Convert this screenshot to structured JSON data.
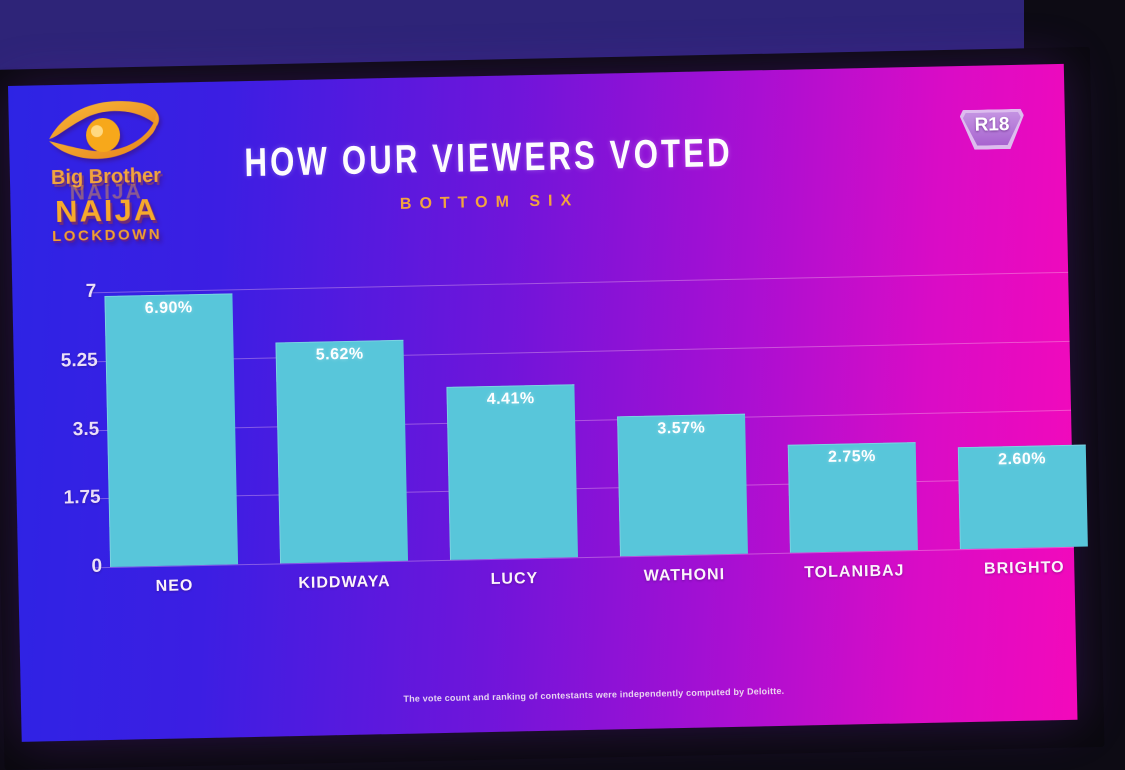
{
  "logo": {
    "brand_line": "Big Brother",
    "name": "NAIJA",
    "season": "LOCKDOWN"
  },
  "header": {
    "title": "HOW OUR VIEWERS VOTED",
    "subtitle": "BOTTOM SIX",
    "rating_badge": "R18"
  },
  "footer": {
    "disclaimer": "The vote count and ranking of contestants were independently computed by Deloitte."
  },
  "chart_data": {
    "type": "bar",
    "title": "HOW OUR VIEWERS VOTED",
    "subtitle": "BOTTOM SIX",
    "categories": [
      "NEO",
      "KIDDWAYA",
      "LUCY",
      "WATHONI",
      "TOLANIBAJ",
      "BRIGHTO"
    ],
    "values": [
      6.9,
      5.62,
      4.41,
      3.57,
      2.75,
      2.6
    ],
    "value_labels": [
      "6.90%",
      "5.62%",
      "4.41%",
      "3.57%",
      "2.75%",
      "2.60%"
    ],
    "ylim": [
      0,
      7
    ],
    "yticks": [
      0,
      1.75,
      3.5,
      5.25,
      7
    ],
    "ytick_labels": [
      "0",
      "1.75",
      "3.5",
      "5.25",
      "7"
    ],
    "xlabel": "",
    "ylabel": "",
    "grid": true,
    "legend_position": "none",
    "layout_note": "sixth bar and its labels are clipped by the right edge of the screen"
  },
  "colors": {
    "wall": "#2e2478",
    "bezel": "#0a090e",
    "photo_bottom": "#0d0b14",
    "screen_blue": "#2d24e4",
    "screen_violet": "#6f15da",
    "screen_magenta": "#f309bb",
    "bar_color": "#58c6da",
    "grid_color": "#ffd2ef59",
    "title_white": "#fdfcfe",
    "accent_orange": "#f2a43e",
    "badge_fill": "#a763cf",
    "badge_rim": "#ddbcee",
    "ylabel": "#eadff8",
    "footnote": "#f2e8f4"
  }
}
